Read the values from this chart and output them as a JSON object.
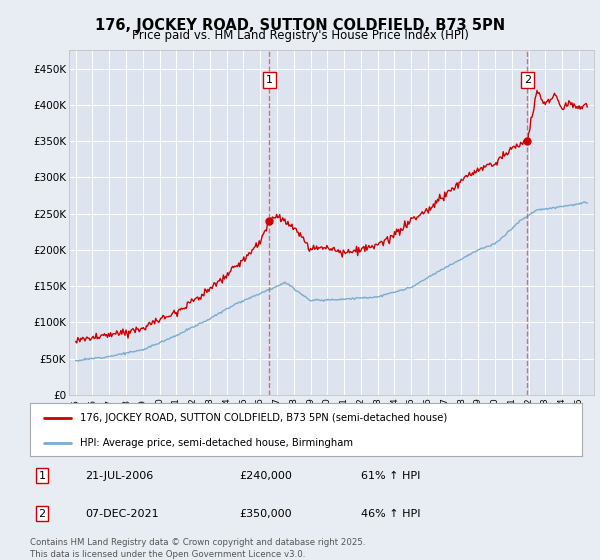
{
  "title": "176, JOCKEY ROAD, SUTTON COLDFIELD, B73 5PN",
  "subtitle": "Price paid vs. HM Land Registry's House Price Index (HPI)",
  "legend_line1": "176, JOCKEY ROAD, SUTTON COLDFIELD, B73 5PN (semi-detached house)",
  "legend_line2": "HPI: Average price, semi-detached house, Birmingham",
  "sale1_date": "21-JUL-2006",
  "sale1_price": "£240,000",
  "sale1_hpi": "61% ↑ HPI",
  "sale1_year": 2006.54,
  "sale1_value": 240000,
  "sale2_date": "07-DEC-2021",
  "sale2_price": "£350,000",
  "sale2_hpi": "46% ↑ HPI",
  "sale2_year": 2021.93,
  "sale2_value": 350000,
  "copyright": "Contains HM Land Registry data © Crown copyright and database right 2025.\nThis data is licensed under the Open Government Licence v3.0.",
  "background_color": "#e8edf4",
  "plot_bg_color": "#dde4f0",
  "red_color": "#cc0000",
  "blue_color": "#7aadcc",
  "dashed_color": "#cc6666",
  "ylim": [
    0,
    475000
  ],
  "yticks": [
    0,
    50000,
    100000,
    150000,
    200000,
    250000,
    300000,
    350000,
    400000,
    450000
  ],
  "xlim_start": 1994.6,
  "xlim_end": 2025.9,
  "hpi_base_1995": 47000,
  "red_base_1995": 75000,
  "sale1_hpi_val_approx": 149000,
  "sale2_hpi_val_approx": 239000
}
